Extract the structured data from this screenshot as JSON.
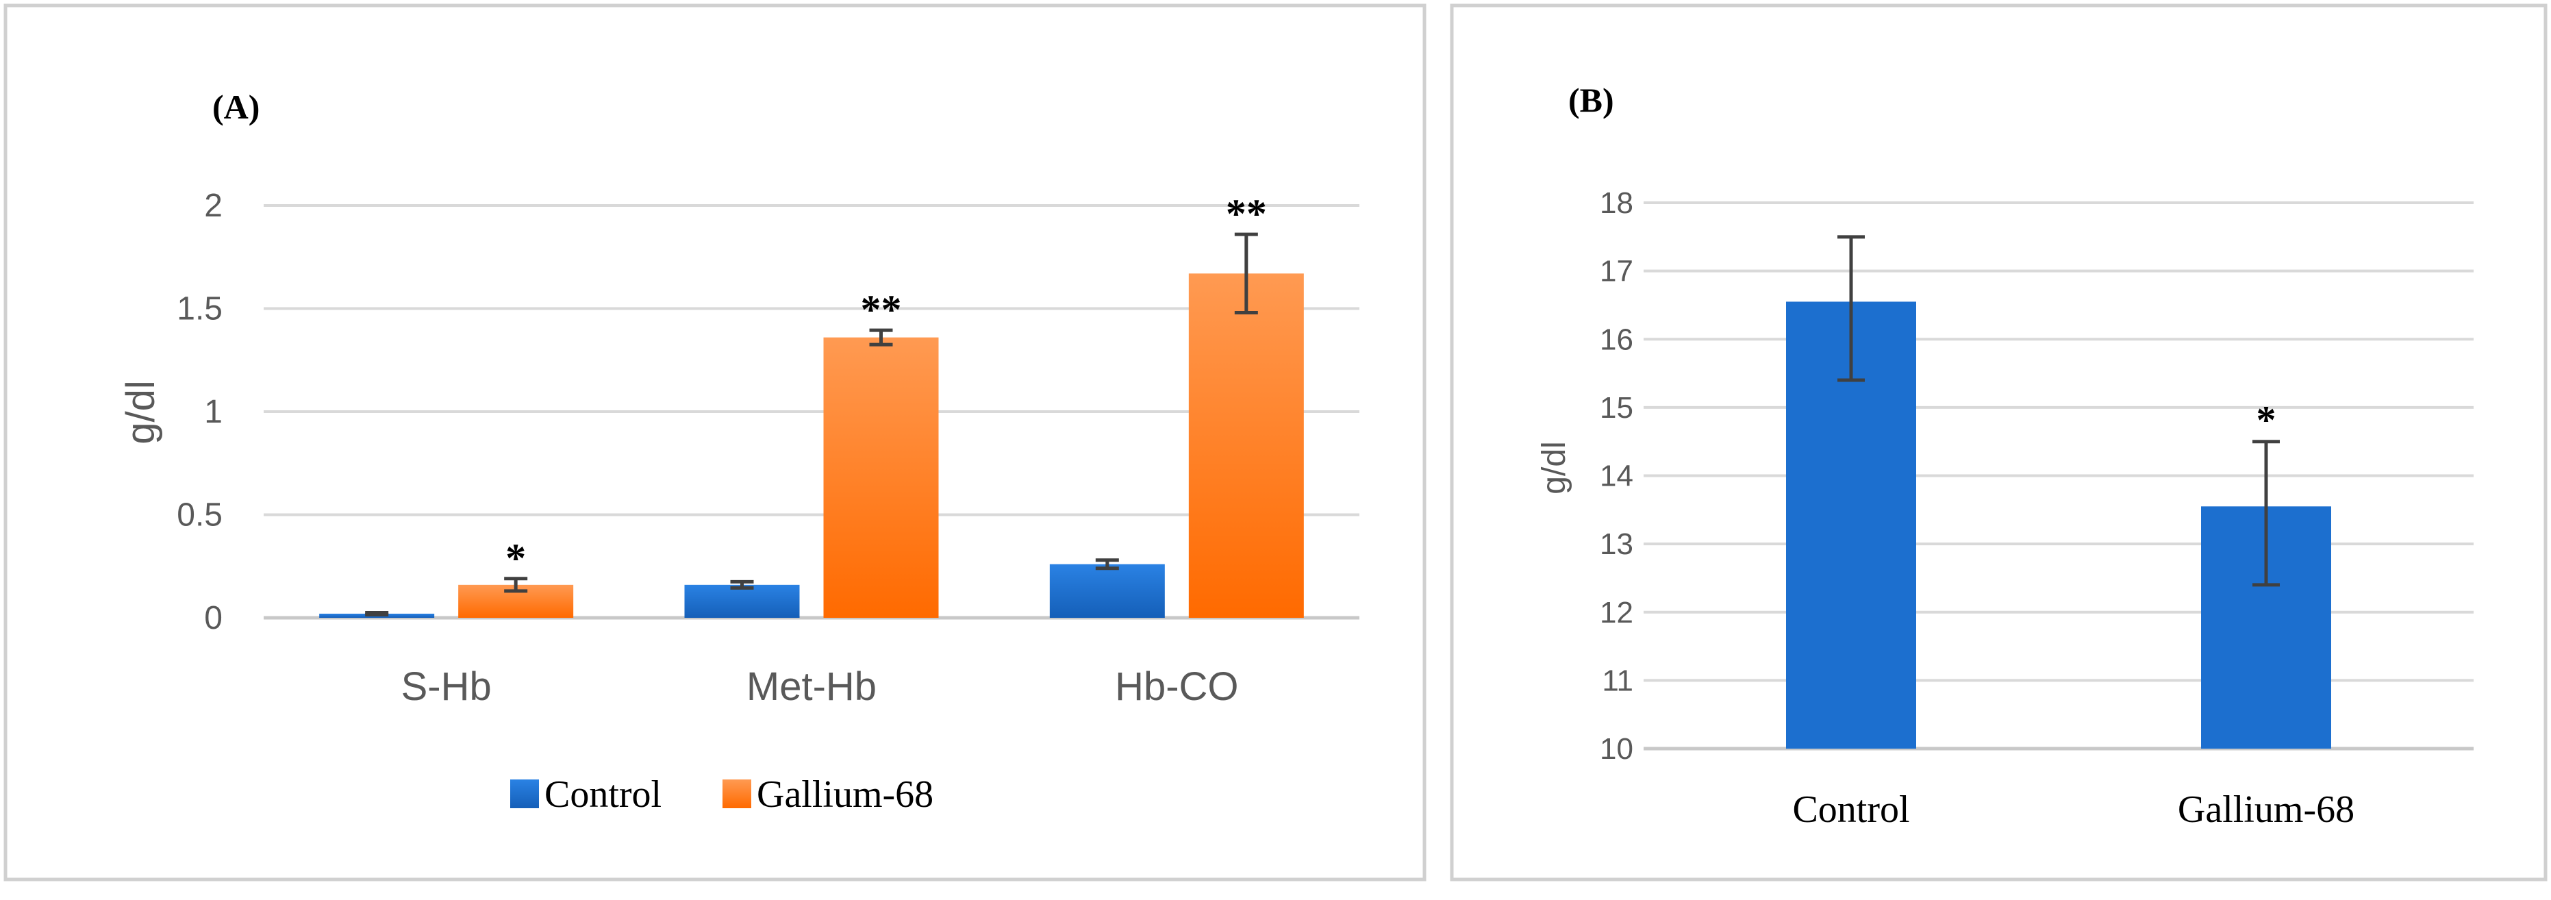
{
  "colors": {
    "control": "#1c6fcf",
    "control_top": "#2a82e4",
    "gallium": "#ff7a1c",
    "gallium_top": "#ffa05e",
    "gridline": "#d9d9d9",
    "axis_text": "#595959",
    "panel_border": "#d0d0d0",
    "error_bar": "#404040",
    "text": "#000000"
  },
  "chart_data": [
    {
      "type": "bar",
      "panel_label": "(A)",
      "title": "",
      "xlabel": "",
      "ylabel": "g/dl",
      "ylim": [
        0,
        2
      ],
      "yticks": [
        0,
        0.5,
        1,
        1.5,
        2
      ],
      "ytick_labels": [
        "0",
        "0.5",
        "1",
        "1.5",
        "2"
      ],
      "grid": true,
      "legend_position": "bottom",
      "categories": [
        "S-Hb",
        "Met-Hb",
        "Hb-CO"
      ],
      "series": [
        {
          "name": "Control",
          "color_key": "control",
          "values": [
            0.02,
            0.16,
            0.26
          ],
          "errors": [
            0.005,
            0.015,
            0.02
          ],
          "annotations": [
            "",
            "",
            ""
          ]
        },
        {
          "name": "Gallium-68",
          "color_key": "gallium",
          "values": [
            0.16,
            1.36,
            1.67
          ],
          "errors": [
            0.03,
            0.035,
            0.19
          ],
          "annotations": [
            "*",
            "**",
            "**"
          ]
        }
      ]
    },
    {
      "type": "bar",
      "panel_label": "(B)",
      "title": "",
      "xlabel": "",
      "ylabel": "g/dl",
      "ylim": [
        10,
        18
      ],
      "yticks": [
        10,
        11,
        12,
        13,
        14,
        15,
        16,
        17,
        18
      ],
      "ytick_labels": [
        "10",
        "11",
        "12",
        "13",
        "14",
        "15",
        "16",
        "17",
        "18"
      ],
      "grid": true,
      "legend_position": "none",
      "categories": [
        "Control",
        "Gallium-68"
      ],
      "series": [
        {
          "name": "",
          "color_key": "control",
          "values": [
            16.55,
            13.55
          ],
          "err_low": [
            15.4,
            12.4
          ],
          "err_high": [
            17.5,
            14.5
          ],
          "annotations": [
            "",
            "*"
          ]
        }
      ]
    }
  ]
}
